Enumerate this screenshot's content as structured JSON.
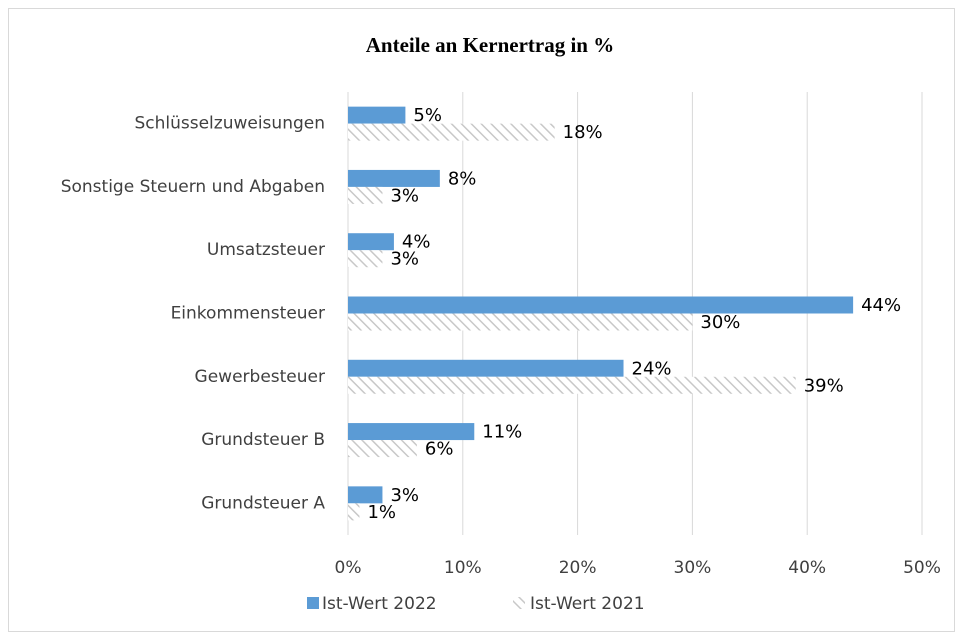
{
  "chart_data": {
    "type": "hbar",
    "title": "Anteile an Kernertrag in %",
    "categories": [
      "Schlüsselzuweisungen",
      "Sonstige Steuern und Abgaben",
      "Umsatzsteuer",
      "Einkommensteuer",
      "Gewerbesteuer",
      "Grundsteuer B",
      "Grundsteuer A"
    ],
    "series": [
      {
        "name": "Ist-Wert 2022",
        "color": "#5b9bd5",
        "fill": "solid",
        "values": [
          5,
          8,
          4,
          44,
          24,
          11,
          3
        ],
        "value_labels": [
          "5%",
          "8%",
          "4%",
          "44%",
          "24%",
          "11%",
          "3%"
        ]
      },
      {
        "name": "Ist-Wert 2021",
        "color": "#c8c8c8",
        "fill": "hatch",
        "values": [
          18,
          3,
          3,
          30,
          39,
          6,
          1
        ],
        "value_labels": [
          "18%",
          "3%",
          "3%",
          "30%",
          "39%",
          "6%",
          "1%"
        ]
      }
    ],
    "xlim": [
      0,
      50
    ],
    "xticks": [
      {
        "value": 0,
        "label": "0%"
      },
      {
        "value": 10,
        "label": "10%"
      },
      {
        "value": 20,
        "label": "20%"
      },
      {
        "value": 30,
        "label": "30%"
      },
      {
        "value": 40,
        "label": "40%"
      },
      {
        "value": 50,
        "label": "50%"
      }
    ],
    "grid": true,
    "legend": "bottom"
  }
}
